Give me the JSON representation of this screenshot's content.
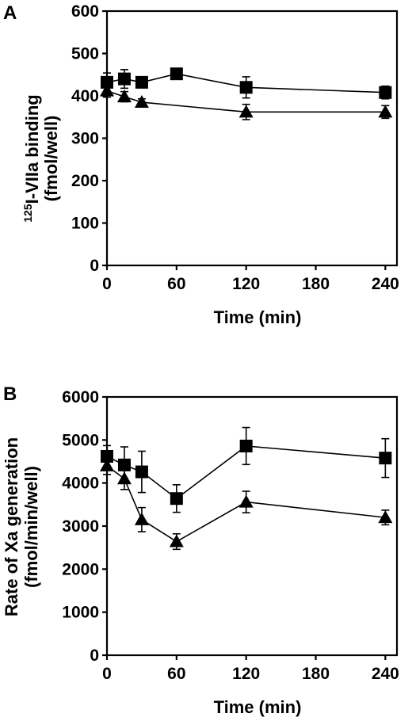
{
  "chart_data": [
    {
      "panel_label": "A",
      "type": "line",
      "xlabel": "Time (min)",
      "ylabel_sup": "125",
      "ylabel_line1": "I-VIIa binding",
      "ylabel_line2": "(fmol/well)",
      "xlim": [
        0,
        250
      ],
      "ylim": [
        0,
        600
      ],
      "xticks": [
        0,
        60,
        120,
        180,
        240
      ],
      "yticks": [
        0,
        100,
        200,
        300,
        400,
        500,
        600
      ],
      "grid": false,
      "series": [
        {
          "marker": "square",
          "x": [
            0,
            15,
            30,
            60,
            120,
            240
          ],
          "y": [
            432,
            440,
            432,
            452,
            420,
            408
          ],
          "err": [
            22,
            22,
            12,
            10,
            25,
            15
          ]
        },
        {
          "marker": "triangle",
          "x": [
            0,
            15,
            30,
            120,
            240
          ],
          "y": [
            412,
            398,
            385,
            362,
            362
          ],
          "err": [
            15,
            12,
            8,
            18,
            15
          ]
        }
      ]
    },
    {
      "panel_label": "B",
      "type": "line",
      "xlabel": "Time (min)",
      "ylabel_line1": "Rate of Xa generation",
      "ylabel_line2": "(fmol/min/well)",
      "xlim": [
        0,
        250
      ],
      "ylim": [
        0,
        6000
      ],
      "xticks": [
        0,
        60,
        120,
        180,
        240
      ],
      "yticks": [
        0,
        1000,
        2000,
        3000,
        4000,
        5000,
        6000
      ],
      "grid": false,
      "series": [
        {
          "marker": "square",
          "x": [
            0,
            15,
            30,
            60,
            120,
            240
          ],
          "y": [
            4620,
            4420,
            4260,
            3640,
            4860,
            4580
          ],
          "err": [
            250,
            420,
            480,
            320,
            430,
            450
          ]
        },
        {
          "marker": "triangle",
          "x": [
            0,
            15,
            30,
            60,
            120,
            240
          ],
          "y": [
            4400,
            4100,
            3150,
            2640,
            3560,
            3200
          ],
          "err": [
            200,
            250,
            280,
            180,
            250,
            170
          ]
        }
      ]
    }
  ]
}
